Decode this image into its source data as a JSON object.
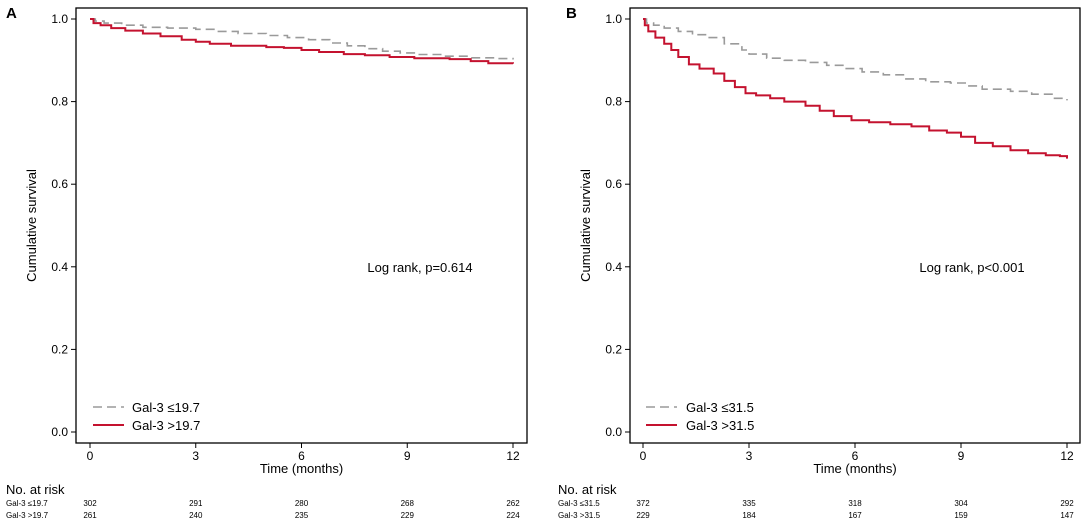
{
  "chart_data": [
    {
      "type": "line",
      "panel_label": "A",
      "ylabel": "Cumulative survival",
      "xlabel": "Time (months)",
      "xlim": [
        0,
        12
      ],
      "ylim": [
        0,
        1.0
      ],
      "xticks": [
        0,
        3,
        6,
        9,
        12
      ],
      "xtick_labels": [
        "0",
        "3",
        "6",
        "9",
        "12"
      ],
      "yticks": [
        0.0,
        0.2,
        0.4,
        0.6,
        0.8,
        1.0
      ],
      "ytick_labels": [
        "0.0",
        "0.2",
        "0.4",
        "0.6",
        "0.8",
        "1.0"
      ],
      "annotation": "Log rank, p=0.614",
      "legend_position": "bottom-left",
      "series": [
        {
          "name": "Gal-3 ≤19.7",
          "color": "#9a9a9a",
          "dash": true,
          "steps": [
            [
              0,
              1.0
            ],
            [
              0.15,
              0.995
            ],
            [
              0.4,
              0.99
            ],
            [
              0.9,
              0.985
            ],
            [
              1.5,
              0.98
            ],
            [
              2.2,
              0.978
            ],
            [
              3.0,
              0.975
            ],
            [
              3.6,
              0.97
            ],
            [
              4.2,
              0.965
            ],
            [
              5.0,
              0.96
            ],
            [
              5.6,
              0.955
            ],
            [
              6.2,
              0.95
            ],
            [
              6.8,
              0.942
            ],
            [
              7.3,
              0.935
            ],
            [
              7.8,
              0.928
            ],
            [
              8.3,
              0.922
            ],
            [
              8.8,
              0.918
            ],
            [
              9.3,
              0.914
            ],
            [
              10.0,
              0.91
            ],
            [
              10.8,
              0.906
            ],
            [
              11.5,
              0.904
            ],
            [
              12,
              0.902
            ]
          ]
        },
        {
          "name": "Gal-3 >19.7",
          "color": "#c4122f",
          "dash": false,
          "steps": [
            [
              0,
              1.0
            ],
            [
              0.1,
              0.99
            ],
            [
              0.3,
              0.985
            ],
            [
              0.6,
              0.978
            ],
            [
              1.0,
              0.972
            ],
            [
              1.5,
              0.965
            ],
            [
              2.0,
              0.958
            ],
            [
              2.6,
              0.95
            ],
            [
              3.0,
              0.945
            ],
            [
              3.4,
              0.94
            ],
            [
              4.0,
              0.935
            ],
            [
              5.0,
              0.932
            ],
            [
              5.5,
              0.93
            ],
            [
              6.0,
              0.925
            ],
            [
              6.5,
              0.92
            ],
            [
              7.2,
              0.915
            ],
            [
              7.8,
              0.912
            ],
            [
              8.5,
              0.908
            ],
            [
              9.2,
              0.905
            ],
            [
              10.2,
              0.903
            ],
            [
              10.8,
              0.898
            ],
            [
              11.3,
              0.893
            ],
            [
              12,
              0.892
            ]
          ]
        }
      ],
      "risk_table": {
        "title": "No. at risk",
        "rows": [
          {
            "label": "Gal-3 ≤19.7",
            "values": [
              "302",
              "291",
              "280",
              "268",
              "262"
            ]
          },
          {
            "label": "Gal-3 >19.7",
            "values": [
              "261",
              "240",
              "235",
              "229",
              "224"
            ]
          }
        ]
      }
    },
    {
      "type": "line",
      "panel_label": "B",
      "ylabel": "Cumulative survival",
      "xlabel": "Time (months)",
      "xlim": [
        0,
        12
      ],
      "ylim": [
        0,
        1.0
      ],
      "xticks": [
        0,
        3,
        6,
        9,
        12
      ],
      "xtick_labels": [
        "0",
        "3",
        "6",
        "9",
        "12"
      ],
      "yticks": [
        0.0,
        0.2,
        0.4,
        0.6,
        0.8,
        1.0
      ],
      "ytick_labels": [
        "0.0",
        "0.2",
        "0.4",
        "0.6",
        "0.8",
        "1.0"
      ],
      "annotation": "Log rank, p<0.001",
      "legend_position": "bottom-left",
      "series": [
        {
          "name": "Gal-3 ≤31.5",
          "color": "#9a9a9a",
          "dash": true,
          "steps": [
            [
              0,
              1.0
            ],
            [
              0.1,
              0.99
            ],
            [
              0.3,
              0.985
            ],
            [
              0.6,
              0.978
            ],
            [
              1.0,
              0.97
            ],
            [
              1.4,
              0.962
            ],
            [
              1.8,
              0.955
            ],
            [
              2.3,
              0.94
            ],
            [
              2.8,
              0.925
            ],
            [
              3.0,
              0.915
            ],
            [
              3.5,
              0.905
            ],
            [
              4.0,
              0.9
            ],
            [
              4.6,
              0.895
            ],
            [
              5.2,
              0.888
            ],
            [
              5.7,
              0.88
            ],
            [
              6.2,
              0.872
            ],
            [
              6.8,
              0.865
            ],
            [
              7.4,
              0.855
            ],
            [
              8.0,
              0.848
            ],
            [
              8.7,
              0.845
            ],
            [
              9.2,
              0.838
            ],
            [
              9.6,
              0.83
            ],
            [
              10.4,
              0.825
            ],
            [
              11.0,
              0.818
            ],
            [
              11.6,
              0.808
            ],
            [
              12,
              0.803
            ]
          ]
        },
        {
          "name": "Gal-3 >31.5",
          "color": "#c4122f",
          "dash": false,
          "steps": [
            [
              0,
              1.0
            ],
            [
              0.05,
              0.985
            ],
            [
              0.15,
              0.97
            ],
            [
              0.35,
              0.955
            ],
            [
              0.6,
              0.94
            ],
            [
              0.8,
              0.925
            ],
            [
              1.0,
              0.908
            ],
            [
              1.3,
              0.89
            ],
            [
              1.6,
              0.88
            ],
            [
              2.0,
              0.868
            ],
            [
              2.3,
              0.85
            ],
            [
              2.6,
              0.835
            ],
            [
              2.9,
              0.82
            ],
            [
              3.2,
              0.815
            ],
            [
              3.6,
              0.808
            ],
            [
              4.0,
              0.8
            ],
            [
              4.6,
              0.79
            ],
            [
              5.0,
              0.778
            ],
            [
              5.4,
              0.765
            ],
            [
              5.9,
              0.755
            ],
            [
              6.4,
              0.75
            ],
            [
              7.0,
              0.745
            ],
            [
              7.6,
              0.74
            ],
            [
              8.1,
              0.73
            ],
            [
              8.6,
              0.725
            ],
            [
              9.0,
              0.715
            ],
            [
              9.4,
              0.7
            ],
            [
              9.9,
              0.692
            ],
            [
              10.4,
              0.682
            ],
            [
              10.9,
              0.675
            ],
            [
              11.4,
              0.67
            ],
            [
              11.8,
              0.668
            ],
            [
              12,
              0.662
            ]
          ]
        }
      ],
      "risk_table": {
        "title": "No. at risk",
        "rows": [
          {
            "label": "Gal-3 ≤31.5",
            "values": [
              "372",
              "335",
              "318",
              "304",
              "292"
            ]
          },
          {
            "label": "Gal-3 >31.5",
            "values": [
              "229",
              "184",
              "167",
              "159",
              "147"
            ]
          }
        ]
      }
    }
  ]
}
